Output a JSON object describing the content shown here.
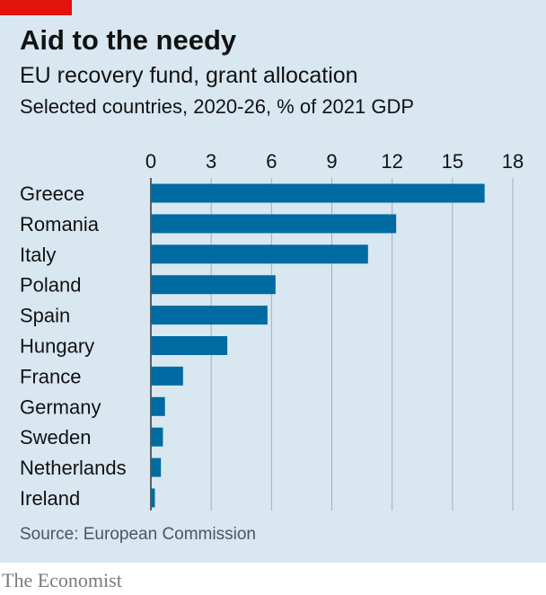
{
  "header": {
    "title": "Aid to the needy",
    "subtitle": "EU recovery fund, grant allocation",
    "description": "Selected countries, 2020-26, % of 2021 GDP"
  },
  "footer": {
    "source": "Source: European Commission",
    "brand": "The Economist"
  },
  "colors": {
    "background": "#d8e7f0",
    "bar": "#006ba2",
    "accent": "#e3120b",
    "gridline": "#a0b2bd"
  },
  "chart_data": {
    "type": "bar",
    "orientation": "horizontal",
    "categories": [
      "Greece",
      "Romania",
      "Italy",
      "Poland",
      "Spain",
      "Hungary",
      "France",
      "Germany",
      "Sweden",
      "Netherlands",
      "Ireland"
    ],
    "values": [
      16.6,
      12.2,
      10.8,
      6.2,
      5.8,
      3.8,
      1.6,
      0.7,
      0.6,
      0.5,
      0.2
    ],
    "x_ticks": [
      0,
      3,
      6,
      9,
      12,
      15,
      18
    ],
    "xlim": [
      0,
      18
    ],
    "axis_position": "top",
    "grid": true,
    "title": "Aid to the needy",
    "subtitle": "EU recovery fund, grant allocation",
    "xlabel": "",
    "ylabel": ""
  }
}
